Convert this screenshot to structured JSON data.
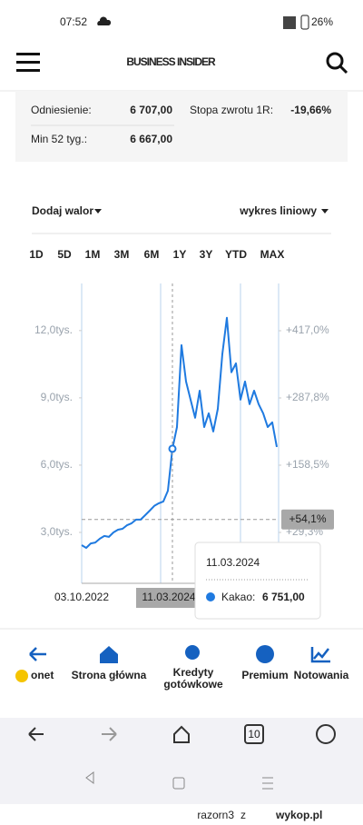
{
  "status_bar": {
    "time": "07:52",
    "battery": "26%"
  },
  "header": {
    "title": "BUSINESS INSIDER"
  },
  "stats": {
    "rows": [
      [
        "Odniesienie:",
        "6 707,00",
        "Stopa zwrotu 1R:",
        "-19,66%"
      ],
      [
        "Min 52 tyg.:",
        "6 667,00"
      ]
    ]
  },
  "controls": {
    "add": "Dodaj walor",
    "chart_kind": "wykres liniowy"
  },
  "ranges": {
    "items": [
      "1D",
      "5D",
      "1M",
      "3M",
      "6M",
      "1Y",
      "3Y",
      "YTD",
      "MAX"
    ],
    "active": 6,
    "active_color": "#3b7dd8"
  },
  "chart_data": {
    "type": "line",
    "color": "#1f7ae0",
    "categories": [
      "03.10.2022",
      null,
      null,
      null,
      null,
      null,
      null,
      null,
      null,
      null,
      null,
      null,
      null,
      null,
      null,
      null,
      null,
      null,
      null,
      null,
      null,
      null,
      null,
      null,
      null,
      null,
      null,
      null,
      null,
      null,
      null,
      null,
      null,
      null,
      null,
      null,
      null,
      null,
      null,
      null,
      null,
      null,
      null,
      null
    ],
    "values": [
      2430,
      2310,
      2510,
      2550,
      2720,
      2840,
      2800,
      3000,
      3120,
      3160,
      3320,
      3410,
      3570,
      3570,
      3770,
      3970,
      4180,
      4300,
      4380,
      4860,
      6730,
      7700,
      11350,
      9730,
      8920,
      8110,
      9320,
      7700,
      8310,
      7500,
      8510,
      10950,
      12570,
      10140,
      10540,
      8920,
      9730,
      8720,
      9320,
      8720,
      8310,
      7700,
      7910,
      6810
    ],
    "ylim": [
      730,
      14100
    ],
    "yticks": [
      {
        "value": 12000,
        "label": "12,0tys."
      },
      {
        "value": 9000,
        "label": "9,0tys."
      },
      {
        "value": 6000,
        "label": "6,0tys."
      },
      {
        "value": 3000,
        "label": "3,0tys."
      }
    ],
    "y2lim": [
      -68.5,
      507.8
    ],
    "y2ticks": [
      {
        "value": 417,
        "label": "+417,0%"
      },
      {
        "value": 287.8,
        "label": "+287,8%"
      },
      {
        "value": 158.5,
        "label": "+158,5%"
      },
      {
        "value": 29.3,
        "label": "+29,3%"
      }
    ],
    "marker": {
      "value": 54.1,
      "label": "+54,1%"
    },
    "cursor_index": 20
  },
  "tooltip": {
    "date": "11.03.2024",
    "series": "Kakao:",
    "value": "6 751,00"
  },
  "bottom_nav": {
    "items": [
      {
        "label": "onet"
      },
      {
        "label": "Strona główna"
      },
      {
        "lines": [
          "Kredyty",
          "gotówkowe"
        ]
      },
      {
        "label": "Premium"
      },
      {
        "label": "Notowania"
      }
    ]
  },
  "browser": {
    "tabs": "10"
  },
  "watermark": {
    "user": "razorn3",
    "joiner": "z",
    "site": "wykop.pl"
  }
}
